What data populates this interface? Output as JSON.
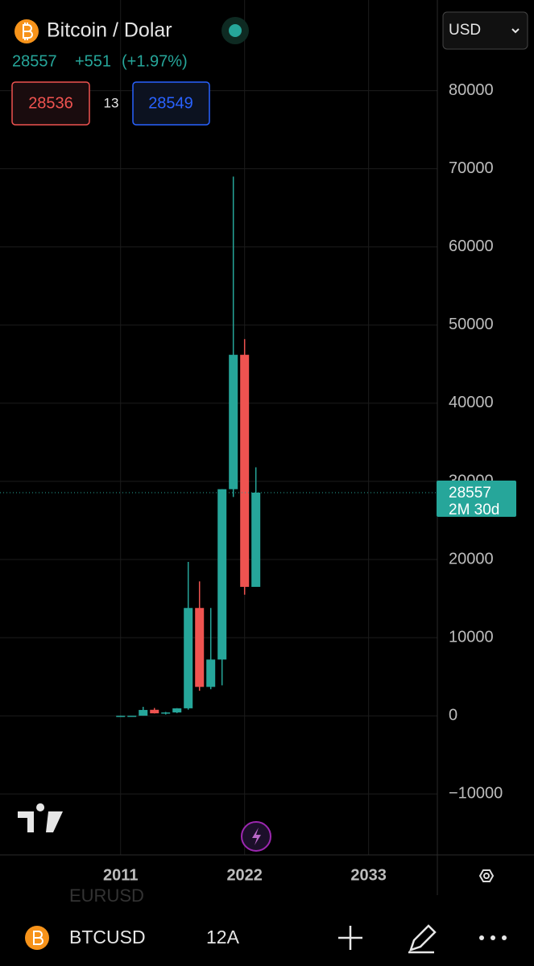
{
  "header": {
    "symbol_name": "Bitcoin / Dolar",
    "price": "28557",
    "change": "+551",
    "change_pct": "(+1.97%)",
    "sell": "28536",
    "spread": "13",
    "buy": "28549",
    "currency": "USD"
  },
  "toolbar": {
    "ticker": "BTCUSD",
    "interval": "12A",
    "behind": "EURUSD"
  },
  "chart_data": {
    "type": "candlestick",
    "x": [
      2011,
      2012,
      2013,
      2014,
      2015,
      2016,
      2017,
      2018,
      2019,
      2020,
      2021,
      2022,
      2023
    ],
    "open": [
      0.3,
      4.7,
      13.5,
      770,
      315,
      430,
      960,
      13800,
      3700,
      7200,
      29000,
      46200,
      16500
    ],
    "high": [
      32,
      16,
      1150,
      1000,
      500,
      980,
      19700,
      17200,
      13800,
      29000,
      69000,
      48200,
      31800
    ],
    "low": [
      0.3,
      4,
      13,
      300,
      170,
      350,
      780,
      3200,
      3400,
      3900,
      28000,
      15500,
      16500
    ],
    "close": [
      4.7,
      13.5,
      750,
      320,
      430,
      960,
      13800,
      3700,
      7200,
      29000,
      46200,
      16500,
      28557
    ],
    "up_color": "#26a69a",
    "down_color": "#ef5350",
    "xlim": [
      2000.3,
      2039.1
    ],
    "xticks": [
      2011,
      2022,
      2033
    ],
    "ylim": [
      -17800,
      91600
    ],
    "yticks": [
      {
        "value": -10000,
        "label": "−10000"
      },
      0,
      10000,
      20000,
      30000,
      40000,
      50000,
      60000,
      70000,
      80000
    ],
    "grid": true,
    "last_price": 28557,
    "countdown": "2M 30d"
  }
}
